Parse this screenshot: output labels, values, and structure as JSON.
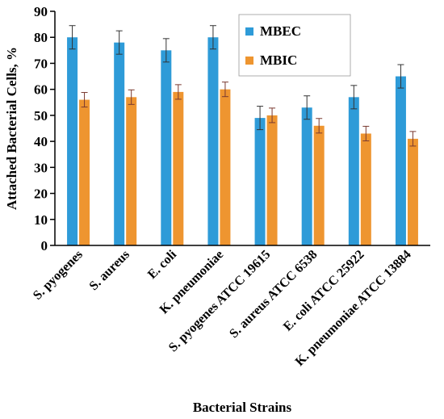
{
  "chart_data": {
    "type": "bar",
    "title": "",
    "xlabel": "Bacterial Strains",
    "ylabel": "Attached Bacterial Cells, %",
    "ylim": [
      0,
      90
    ],
    "yticks": [
      "0",
      "10",
      "20",
      "30",
      "40",
      "50",
      "60",
      "70",
      "80",
      "90"
    ],
    "grid": false,
    "legend_position": "top-right",
    "categories": [
      "S. pyogenes",
      "S. aureus",
      "E. coli",
      "K. pneumoniae",
      "S. pyogenes ATCC 19615",
      "S. aureus ATCC 6538",
      "E. coli ATCC 25922",
      "K. pneumoniae ATCC 13884"
    ],
    "series": [
      {
        "name": "MBEC",
        "color": "#2E9BD8",
        "values": [
          80,
          78,
          75,
          80,
          49,
          53,
          57,
          65
        ],
        "errors": [
          4.5,
          4.5,
          4.5,
          4.5,
          4.5,
          4.5,
          4.5,
          4.5
        ]
      },
      {
        "name": "MBIC",
        "color": "#EE9530",
        "values": [
          56,
          57,
          59,
          60,
          50,
          46,
          43,
          41
        ],
        "errors": [
          2.8,
          2.8,
          2.8,
          2.8,
          2.8,
          2.8,
          2.8,
          2.8
        ]
      }
    ]
  }
}
